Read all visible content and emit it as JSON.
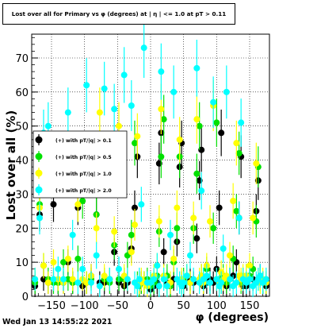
{
  "window": {
    "title": "Lost over all for Primary vs φ (degrees) at | η | <= 1.0 at pT > 0.11",
    "timestamp": "Wed Jan 13 14:55:22 2021"
  },
  "chart_data": {
    "type": "scatter",
    "title": "Lost over all for Primary vs φ (degrees) at | η | <= 1.0 at pT > 0.11",
    "xlabel": "φ (degrees)",
    "ylabel": "Lost over all (%)",
    "xlim": [
      -180,
      180
    ],
    "ylim": [
      0,
      77
    ],
    "xticks": [
      -150,
      -100,
      -50,
      0,
      50,
      100,
      150
    ],
    "yticks": [
      0,
      10,
      20,
      30,
      40,
      50,
      60,
      70
    ],
    "grid": true,
    "grid_style": "dotted",
    "legend_position": "left-middle",
    "colors": {
      "black": "#000000",
      "green": "#00e000",
      "yellow": "#ffff00",
      "cyan": "#00ffff"
    },
    "x": [
      -175,
      -168,
      -162,
      -155,
      -147,
      -140,
      -132,
      -125,
      -118,
      -110,
      -103,
      -97,
      -90,
      -82,
      -77,
      -70,
      -62,
      -55,
      -48,
      -40,
      -35,
      -29,
      -24,
      -20,
      -17,
      -14,
      -10,
      -5,
      0,
      5,
      10,
      13,
      16,
      20,
      25,
      30,
      35,
      40,
      44,
      47,
      50,
      55,
      60,
      65,
      70,
      74,
      77,
      80,
      85,
      90,
      95,
      100,
      104,
      107,
      110,
      115,
      120,
      125,
      130,
      134,
      137,
      140,
      145,
      150,
      155,
      160,
      163,
      166,
      170,
      175
    ],
    "series": [
      {
        "name": "(+) with pT/|q| > 0.1",
        "color": "#000000",
        "values": [
          3,
          24,
          5,
          4,
          27,
          4,
          4,
          10,
          4,
          26,
          3,
          4,
          6,
          24,
          4,
          4,
          5,
          13,
          4,
          3,
          4,
          14,
          26,
          41,
          4,
          4,
          4,
          4,
          2,
          3,
          4,
          39,
          48,
          13,
          4,
          3,
          5,
          16,
          38,
          45,
          3,
          5,
          5,
          4,
          17,
          34,
          43,
          3,
          4,
          5,
          4,
          8,
          26,
          48,
          4,
          3,
          5,
          6,
          10,
          23,
          41,
          3,
          3,
          5,
          5,
          25,
          34,
          6,
          4,
          3
        ]
      },
      {
        "name": "(+) with pT/|q| > 0.5",
        "color": "#00e000",
        "values": [
          4,
          27,
          9,
          5,
          4,
          4,
          10,
          5,
          4,
          11,
          28,
          4,
          5,
          24,
          42,
          5,
          4,
          15,
          5,
          5,
          12,
          18,
          45,
          4,
          3,
          4,
          4,
          5,
          3,
          4,
          6,
          19,
          41,
          52,
          6,
          3,
          10,
          20,
          41,
          4,
          5,
          6,
          4,
          20,
          36,
          50,
          6,
          5,
          8,
          4,
          20,
          51,
          5,
          4,
          6,
          4,
          5,
          11,
          25,
          42,
          4,
          5,
          6,
          6,
          8,
          22,
          38,
          5,
          4,
          4
        ]
      },
      {
        "name": "(+) with pT/|q| > 1.0",
        "color": "#ffff00",
        "values": [
          5,
          26,
          9,
          4,
          10,
          5,
          4,
          11,
          5,
          27,
          5,
          4,
          6,
          20,
          54,
          6,
          5,
          19,
          50,
          6,
          5,
          13,
          21,
          47,
          4,
          5,
          4,
          3,
          4,
          6,
          9,
          22,
          55,
          6,
          3,
          4,
          11,
          26,
          46,
          5,
          4,
          6,
          4,
          23,
          52,
          5,
          6,
          4,
          9,
          22,
          56,
          5,
          4,
          7,
          5,
          6,
          12,
          28,
          45,
          6,
          5,
          6,
          6,
          9,
          23,
          39,
          5,
          4,
          5,
          4
        ]
      },
      {
        "name": "(+) with pT/|q| > 2.0",
        "color": "#00ffff",
        "values": [
          5,
          23,
          48,
          50,
          5,
          8,
          5,
          54,
          18,
          4,
          8,
          62,
          4,
          12,
          3,
          61,
          5,
          55,
          8,
          65,
          5,
          56,
          4,
          3,
          5,
          27,
          73,
          4,
          4,
          5,
          9,
          3,
          66,
          5,
          3,
          18,
          60,
          5,
          4,
          3,
          4,
          6,
          12,
          5,
          67,
          4,
          31,
          5,
          6,
          4,
          57,
          5,
          3,
          4,
          14,
          60,
          5,
          3,
          4,
          23,
          51,
          5,
          4,
          5,
          3,
          4,
          5,
          6,
          4,
          5
        ]
      }
    ]
  }
}
